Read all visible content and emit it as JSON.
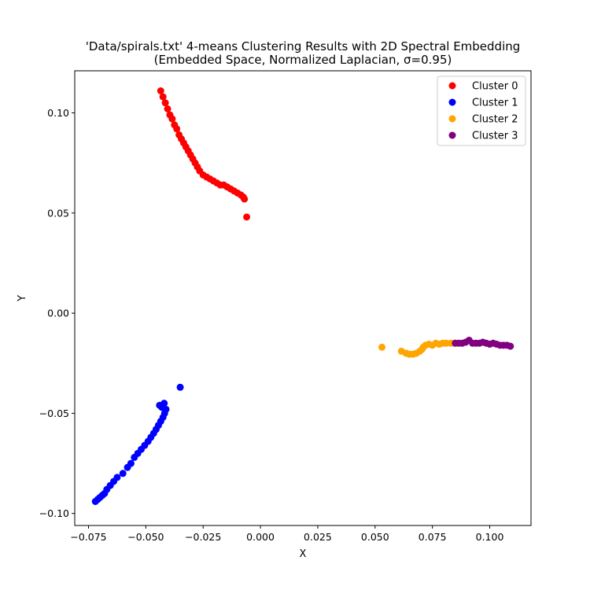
{
  "chart_data": {
    "type": "scatter",
    "title_line1": "'Data/spirals.txt' 4-means Clustering Results with 2D Spectral Embedding",
    "title_line2": "(Embedded Space, Normalized Laplacian, σ=0.95)",
    "xlabel": "X",
    "ylabel": "Y",
    "xlim": [
      -0.081,
      0.118
    ],
    "ylim": [
      -0.106,
      0.121
    ],
    "xticks": [
      -0.075,
      -0.05,
      -0.025,
      0.0,
      0.025,
      0.05,
      0.075,
      0.1
    ],
    "xtick_labels": [
      "−0.075",
      "−0.050",
      "−0.025",
      "0.000",
      "0.025",
      "0.050",
      "0.075",
      "0.100"
    ],
    "yticks": [
      -0.1,
      -0.05,
      0.0,
      0.05,
      0.1
    ],
    "ytick_labels": [
      "−0.10",
      "−0.05",
      "0.00",
      "0.05",
      "0.10"
    ],
    "legend_position": "top-right",
    "grid": false,
    "series": [
      {
        "name": "Cluster 0",
        "color": "#ff0000",
        "points": [
          [
            -0.0435,
            0.111
          ],
          [
            -0.0425,
            0.108
          ],
          [
            -0.0415,
            0.105
          ],
          [
            -0.0405,
            0.102
          ],
          [
            -0.0395,
            0.099
          ],
          [
            -0.0385,
            0.097
          ],
          [
            -0.0375,
            0.094
          ],
          [
            -0.0365,
            0.092
          ],
          [
            -0.0355,
            0.089
          ],
          [
            -0.0345,
            0.087
          ],
          [
            -0.0335,
            0.085
          ],
          [
            -0.0325,
            0.083
          ],
          [
            -0.0315,
            0.081
          ],
          [
            -0.0305,
            0.079
          ],
          [
            -0.0295,
            0.077
          ],
          [
            -0.0285,
            0.075
          ],
          [
            -0.0275,
            0.073
          ],
          [
            -0.0265,
            0.071
          ],
          [
            -0.025,
            0.069
          ],
          [
            -0.0235,
            0.068
          ],
          [
            -0.022,
            0.067
          ],
          [
            -0.0205,
            0.066
          ],
          [
            -0.019,
            0.065
          ],
          [
            -0.0175,
            0.064
          ],
          [
            -0.016,
            0.064
          ],
          [
            -0.0145,
            0.063
          ],
          [
            -0.013,
            0.062
          ],
          [
            -0.0115,
            0.061
          ],
          [
            -0.01,
            0.06
          ],
          [
            -0.0085,
            0.059
          ],
          [
            -0.0075,
            0.058
          ],
          [
            -0.007,
            0.057
          ],
          [
            -0.006,
            0.048
          ]
        ]
      },
      {
        "name": "Cluster 1",
        "color": "#0000ff",
        "points": [
          [
            -0.072,
            -0.094
          ],
          [
            -0.071,
            -0.093
          ],
          [
            -0.07,
            -0.092
          ],
          [
            -0.069,
            -0.091
          ],
          [
            -0.068,
            -0.09
          ],
          [
            -0.067,
            -0.088
          ],
          [
            -0.0655,
            -0.086
          ],
          [
            -0.064,
            -0.084
          ],
          [
            -0.0625,
            -0.082
          ],
          [
            -0.06,
            -0.08
          ],
          [
            -0.058,
            -0.077
          ],
          [
            -0.0565,
            -0.075
          ],
          [
            -0.055,
            -0.072
          ],
          [
            -0.0535,
            -0.07
          ],
          [
            -0.052,
            -0.068
          ],
          [
            -0.0505,
            -0.066
          ],
          [
            -0.049,
            -0.064
          ],
          [
            -0.0478,
            -0.062
          ],
          [
            -0.0466,
            -0.06
          ],
          [
            -0.0455,
            -0.058
          ],
          [
            -0.0445,
            -0.056
          ],
          [
            -0.0435,
            -0.054
          ],
          [
            -0.0425,
            -0.052
          ],
          [
            -0.0418,
            -0.05
          ],
          [
            -0.0412,
            -0.048
          ],
          [
            -0.043,
            -0.047
          ],
          [
            -0.044,
            -0.046
          ],
          [
            -0.042,
            -0.045
          ],
          [
            -0.035,
            -0.037
          ]
        ]
      },
      {
        "name": "Cluster 2",
        "color": "#ffa500",
        "points": [
          [
            0.053,
            -0.017
          ],
          [
            0.0615,
            -0.019
          ],
          [
            0.0635,
            -0.02
          ],
          [
            0.065,
            -0.0205
          ],
          [
            0.0665,
            -0.0205
          ],
          [
            0.068,
            -0.02
          ],
          [
            0.0695,
            -0.019
          ],
          [
            0.0705,
            -0.018
          ],
          [
            0.071,
            -0.017
          ],
          [
            0.072,
            -0.016
          ],
          [
            0.0735,
            -0.0155
          ],
          [
            0.075,
            -0.016
          ],
          [
            0.0765,
            -0.015
          ],
          [
            0.078,
            -0.0155
          ],
          [
            0.0795,
            -0.015
          ],
          [
            0.081,
            -0.015
          ],
          [
            0.083,
            -0.015
          ],
          [
            0.0845,
            -0.015
          ]
        ]
      },
      {
        "name": "Cluster 3",
        "color": "#800080",
        "points": [
          [
            0.085,
            -0.015
          ],
          [
            0.0865,
            -0.015
          ],
          [
            0.088,
            -0.015
          ],
          [
            0.0895,
            -0.0145
          ],
          [
            0.091,
            -0.0135
          ],
          [
            0.0925,
            -0.015
          ],
          [
            0.094,
            -0.015
          ],
          [
            0.0955,
            -0.015
          ],
          [
            0.097,
            -0.0145
          ],
          [
            0.0985,
            -0.015
          ],
          [
            0.1,
            -0.0155
          ],
          [
            0.1015,
            -0.015
          ],
          [
            0.103,
            -0.0155
          ],
          [
            0.1045,
            -0.016
          ],
          [
            0.106,
            -0.016
          ],
          [
            0.1075,
            -0.016
          ],
          [
            0.109,
            -0.0165
          ]
        ]
      }
    ]
  }
}
